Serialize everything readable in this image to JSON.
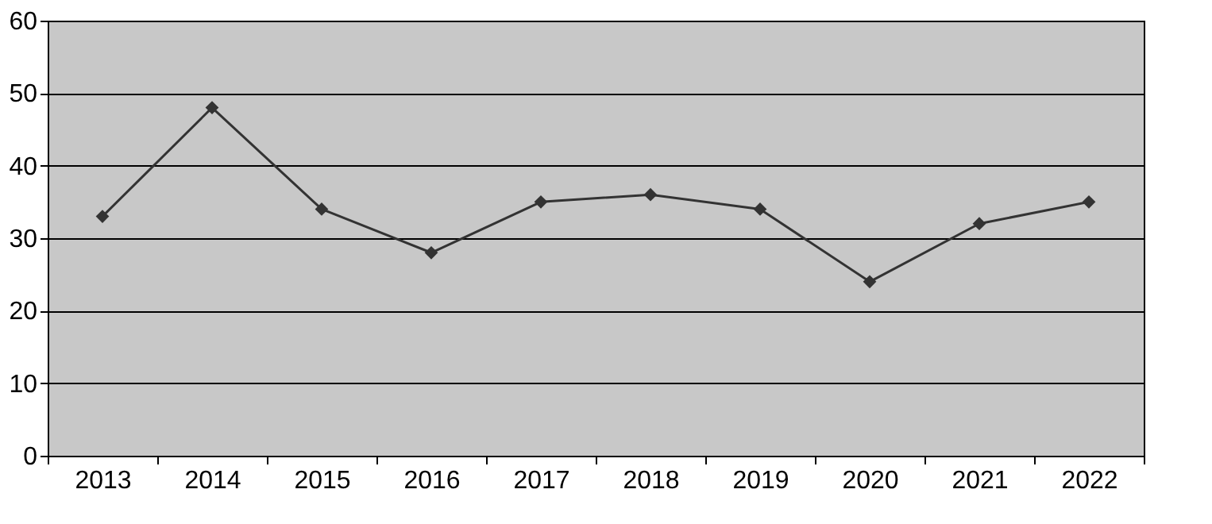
{
  "chart_data": {
    "type": "line",
    "categories": [
      "2013",
      "2014",
      "2015",
      "2016",
      "2017",
      "2018",
      "2019",
      "2020",
      "2021",
      "2022"
    ],
    "series": [
      {
        "color": "#333333",
        "values": [
          33,
          48,
          34,
          28,
          35,
          36,
          34,
          24,
          32,
          35
        ]
      }
    ],
    "ylim": [
      0,
      60
    ],
    "yticks": [
      0,
      10,
      20,
      30,
      40,
      50,
      60
    ],
    "grid": "y",
    "marker": "diamond",
    "line_style": "solid"
  }
}
